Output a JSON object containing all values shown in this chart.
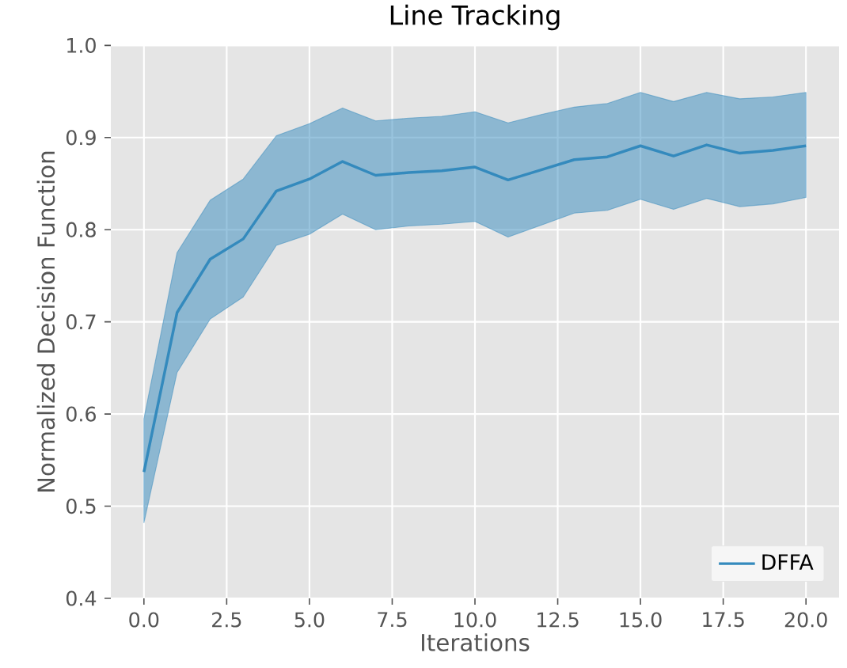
{
  "chart_data": {
    "type": "line",
    "title": "Line Tracking",
    "xlabel": "Iterations",
    "ylabel": "Normalized Decision Function",
    "x": [
      0,
      1,
      2,
      3,
      4,
      5,
      6,
      7,
      8,
      9,
      10,
      11,
      12,
      13,
      14,
      15,
      16,
      17,
      18,
      19,
      20
    ],
    "series": [
      {
        "name": "DFFA",
        "color": "#348abd",
        "values": [
          0.537,
          0.71,
          0.768,
          0.79,
          0.842,
          0.855,
          0.874,
          0.859,
          0.862,
          0.864,
          0.868,
          0.854,
          0.865,
          0.876,
          0.879,
          0.891,
          0.88,
          0.892,
          0.883,
          0.886,
          0.891
        ],
        "upper": [
          0.595,
          0.775,
          0.832,
          0.855,
          0.902,
          0.915,
          0.932,
          0.918,
          0.921,
          0.923,
          0.928,
          0.916,
          0.925,
          0.933,
          0.937,
          0.949,
          0.939,
          0.949,
          0.942,
          0.944,
          0.949
        ],
        "lower": [
          0.482,
          0.645,
          0.703,
          0.727,
          0.783,
          0.795,
          0.817,
          0.8,
          0.804,
          0.806,
          0.809,
          0.792,
          0.805,
          0.818,
          0.821,
          0.833,
          0.822,
          0.834,
          0.825,
          0.828,
          0.835
        ]
      }
    ],
    "xlim": [
      -1.0,
      21.0
    ],
    "ylim": [
      0.4,
      1.0
    ],
    "xticks": [
      {
        "value": 0,
        "label": "0.0"
      },
      {
        "value": 2.5,
        "label": "2.5"
      },
      {
        "value": 5,
        "label": "5.0"
      },
      {
        "value": 7.5,
        "label": "7.5"
      },
      {
        "value": 10,
        "label": "10.0"
      },
      {
        "value": 12.5,
        "label": "12.5"
      },
      {
        "value": 15,
        "label": "15.0"
      },
      {
        "value": 17.5,
        "label": "17.5"
      },
      {
        "value": 20,
        "label": "20.0"
      }
    ],
    "yticks": [
      {
        "value": 0.4,
        "label": "0.4"
      },
      {
        "value": 0.5,
        "label": "0.5"
      },
      {
        "value": 0.6,
        "label": "0.6"
      },
      {
        "value": 0.7,
        "label": "0.7"
      },
      {
        "value": 0.8,
        "label": "0.8"
      },
      {
        "value": 0.9,
        "label": "0.9"
      },
      {
        "value": 1.0,
        "label": "1.0"
      }
    ],
    "grid": true,
    "legend": "bottom right"
  }
}
